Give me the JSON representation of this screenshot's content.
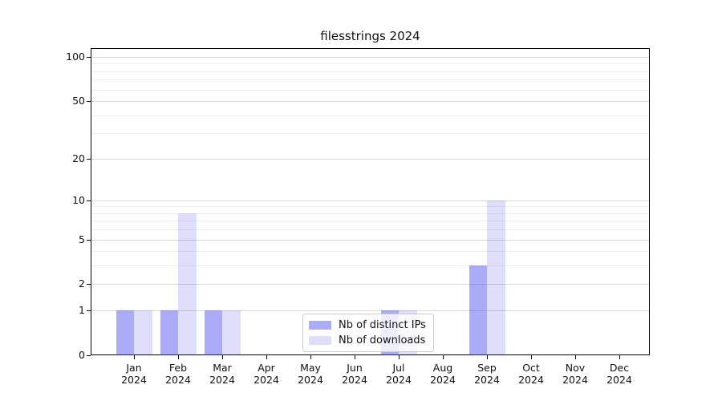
{
  "chart_data": {
    "type": "bar",
    "title": "filesstrings 2024",
    "categories": [
      "Jan",
      "Feb",
      "Mar",
      "Apr",
      "May",
      "Jun",
      "Jul",
      "Aug",
      "Sep",
      "Oct",
      "Nov",
      "Dec"
    ],
    "year": "2024",
    "series": [
      {
        "name": "Nb of distinct IPs",
        "color": "rgba(68,68,238,0.45)",
        "values": [
          1,
          1,
          1,
          0,
          0,
          0,
          1,
          0,
          3,
          0,
          0,
          0
        ]
      },
      {
        "name": "Nb of downloads",
        "color": "rgba(68,68,238,0.17)",
        "values": [
          1,
          8,
          1,
          0,
          0,
          0,
          1,
          0,
          10,
          0,
          0,
          0
        ]
      }
    ],
    "xlabel": "",
    "ylabel": "",
    "yscale": "log1p",
    "ylim": [
      0,
      114
    ],
    "yticks": [
      0,
      1,
      2,
      5,
      10,
      20,
      50,
      100
    ],
    "minor_gridlines": [
      3,
      4,
      6,
      7,
      8,
      9,
      30,
      40,
      60,
      70,
      80,
      90
    ],
    "grid": true,
    "legend_position": "lower center"
  }
}
